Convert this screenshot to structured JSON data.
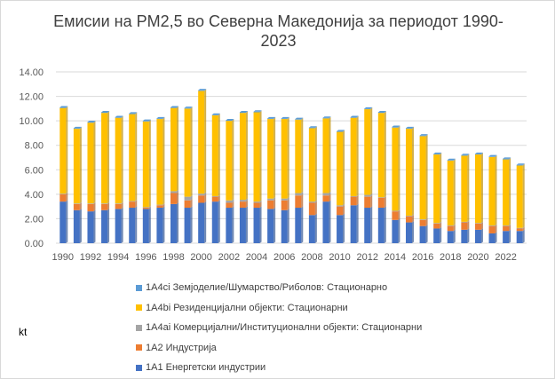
{
  "chart_data": {
    "type": "bar",
    "stacked": true,
    "title": "Емисии на PM2,5 во Северна Македонија за периодот 1990-2023",
    "title_lines": [
      "Емисии на PM2,5 во Северна Македонија за периодот 1990-",
      "2023"
    ],
    "ylabel": "kt",
    "ylim": [
      0,
      14
    ],
    "yticks": [
      "0.00",
      "2.00",
      "4.00",
      "6.00",
      "8.00",
      "10.00",
      "12.00",
      "14.00"
    ],
    "grid": true,
    "legend_position": "bottom",
    "categories": [
      1990,
      1991,
      1992,
      1993,
      1994,
      1995,
      1996,
      1997,
      1998,
      1999,
      2000,
      2001,
      2002,
      2003,
      2004,
      2005,
      2006,
      2007,
      2008,
      2009,
      2010,
      2011,
      2012,
      2013,
      2014,
      2015,
      2016,
      2017,
      2018,
      2019,
      2020,
      2021,
      2022,
      2023
    ],
    "xtick_labels": [
      "1990",
      "1992",
      "1994",
      "1996",
      "1998",
      "2000",
      "2002",
      "2004",
      "2006",
      "2008",
      "2010",
      "2012",
      "2014",
      "2016",
      "2018",
      "2020",
      "2022"
    ],
    "series": [
      {
        "name": "1A1 Енергетски индустрии",
        "color": "#4472c4",
        "values": [
          3.4,
          2.7,
          2.6,
          2.7,
          2.8,
          2.9,
          2.8,
          2.9,
          3.2,
          2.9,
          3.3,
          3.4,
          2.9,
          2.9,
          2.9,
          2.8,
          2.7,
          2.9,
          2.3,
          3.4,
          2.3,
          3.1,
          2.9,
          2.9,
          1.9,
          1.7,
          1.4,
          1.2,
          1.0,
          1.1,
          1.1,
          0.8,
          1.0,
          1.0
        ]
      },
      {
        "name": "1A2 Индустрија",
        "color": "#ed7d31",
        "values": [
          0.6,
          0.5,
          0.6,
          0.5,
          0.4,
          0.5,
          0.1,
          0.2,
          0.9,
          0.6,
          0.6,
          0.4,
          0.4,
          0.5,
          0.4,
          0.7,
          0.8,
          1.0,
          1.0,
          0.5,
          0.7,
          0.7,
          0.9,
          0.8,
          0.7,
          0.5,
          0.5,
          0.4,
          0.4,
          0.6,
          0.5,
          0.6,
          0.4,
          0.2
        ]
      },
      {
        "name": "1A4ai Комерцијални/Институционални објекти: Стационарни",
        "color": "#a5a5a5",
        "values": [
          0.05,
          0.05,
          0.05,
          0.05,
          0.05,
          0.05,
          0.05,
          0.05,
          0.15,
          0.3,
          0.15,
          0.05,
          0.2,
          0.15,
          0.1,
          0.15,
          0.15,
          0.2,
          0.1,
          0.2,
          0.1,
          0.05,
          0.15,
          0.05,
          0.05,
          0.05,
          0.05,
          0.05,
          0.05,
          0.05,
          0.05,
          0.05,
          0.05,
          0.05
        ]
      },
      {
        "name": "1A4bi Резиденцијални објекти: Стационарни",
        "color": "#ffc000",
        "values": [
          7.0,
          6.1,
          6.6,
          7.4,
          7.0,
          7.1,
          7.0,
          7.0,
          6.8,
          7.2,
          8.4,
          6.6,
          6.5,
          7.1,
          7.3,
          6.5,
          6.5,
          6.0,
          6.0,
          6.1,
          6.0,
          6.4,
          7.0,
          6.9,
          6.8,
          7.1,
          6.8,
          5.6,
          5.3,
          5.4,
          5.6,
          5.6,
          5.4,
          5.1
        ]
      },
      {
        "name": "1A4ci Земјоделие/Шумарство/Риболов: Стационарно",
        "color": "#5b9bd5",
        "values": [
          0.05,
          0.05,
          0.05,
          0.05,
          0.05,
          0.05,
          0.05,
          0.05,
          0.05,
          0.05,
          0.05,
          0.05,
          0.05,
          0.05,
          0.05,
          0.05,
          0.05,
          0.05,
          0.05,
          0.05,
          0.05,
          0.05,
          0.05,
          0.05,
          0.05,
          0.05,
          0.05,
          0.05,
          0.05,
          0.05,
          0.05,
          0.05,
          0.05,
          0.05
        ]
      }
    ]
  }
}
